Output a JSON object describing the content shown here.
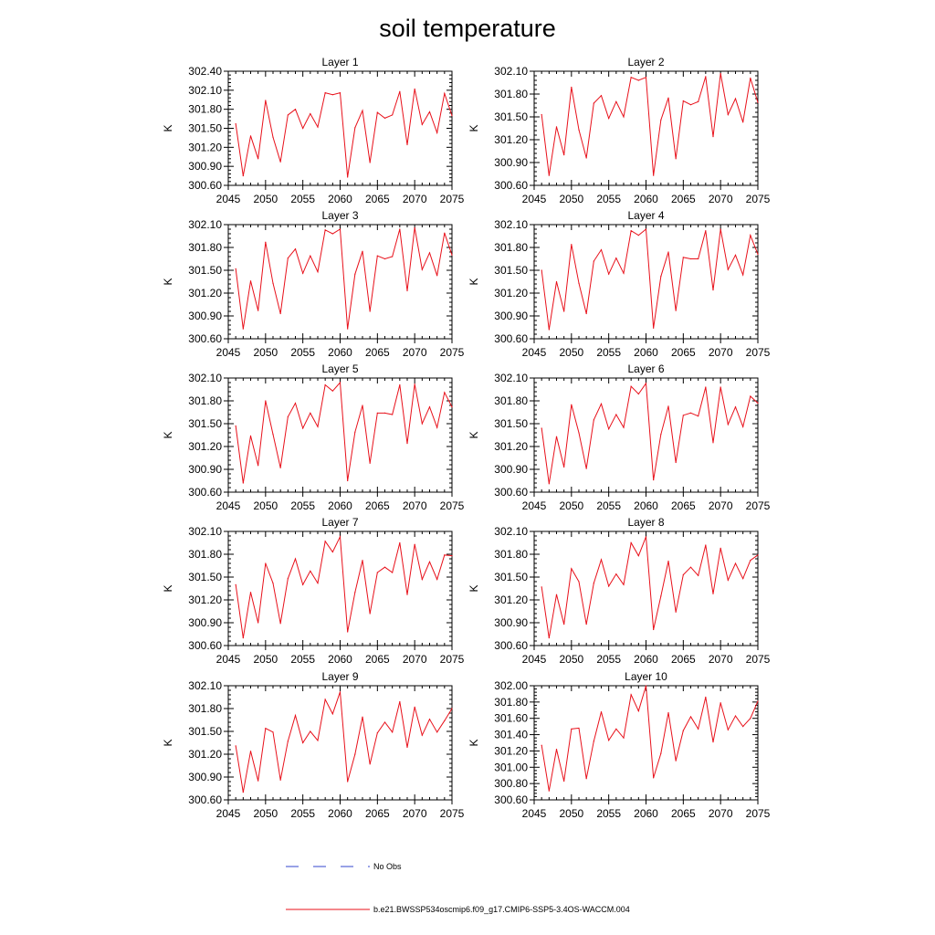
{
  "title": "soil temperature",
  "colors": {
    "model": "#e8101a",
    "obs": "#3344cc",
    "axis": "#000000"
  },
  "legend": [
    {
      "label": "No Obs",
      "color": "#3344cc",
      "style": "dashed"
    },
    {
      "label": "b.e21.BWSSP534oscmip6.f09_g17.CMIP6-SSP5-3.4OS-WACCM.004",
      "color": "#e8101a",
      "style": "solid"
    }
  ],
  "chart_data": [
    {
      "type": "line",
      "title": "Layer 1",
      "ylabel": "K",
      "xlim": [
        2045,
        2075
      ],
      "xticks": [
        "2045",
        "2050",
        "2055",
        "2060",
        "2065",
        "2070",
        "2075"
      ],
      "ylim": [
        300.6,
        302.4
      ],
      "yticks": [
        "300.60",
        "300.90",
        "301.20",
        "301.50",
        "301.80",
        "302.10",
        "302.40"
      ],
      "series": [
        {
          "x": [
            2046,
            2047,
            2048,
            2049,
            2050,
            2051,
            2052,
            2053,
            2054,
            2055,
            2056,
            2057,
            2058,
            2059,
            2060,
            2061,
            2062,
            2063,
            2064,
            2065,
            2066,
            2067,
            2068,
            2069,
            2070,
            2071,
            2072,
            2073,
            2074,
            2075
          ],
          "values": [
            301.57,
            300.75,
            301.38,
            301.02,
            301.94,
            301.36,
            300.97,
            301.71,
            301.8,
            301.5,
            301.73,
            301.52,
            302.06,
            302.03,
            302.06,
            300.73,
            301.51,
            301.78,
            300.96,
            301.75,
            301.66,
            301.71,
            302.08,
            301.24,
            302.12,
            301.56,
            301.76,
            301.43,
            302.05,
            301.7
          ]
        }
      ]
    },
    {
      "type": "line",
      "title": "Layer 2",
      "ylabel": "K",
      "xlim": [
        2045,
        2075
      ],
      "xticks": [
        "2045",
        "2050",
        "2055",
        "2060",
        "2065",
        "2070",
        "2075"
      ],
      "ylim": [
        300.6,
        302.1
      ],
      "yticks": [
        "300.60",
        "300.90",
        "301.20",
        "301.50",
        "301.80",
        "302.10"
      ],
      "series": [
        {
          "x": [
            2046,
            2047,
            2048,
            2049,
            2050,
            2051,
            2052,
            2053,
            2054,
            2055,
            2056,
            2057,
            2058,
            2059,
            2060,
            2061,
            2062,
            2063,
            2064,
            2065,
            2066,
            2067,
            2068,
            2069,
            2070,
            2071,
            2072,
            2073,
            2074,
            2075
          ],
          "values": [
            301.53,
            300.73,
            301.37,
            301.0,
            301.89,
            301.33,
            300.96,
            301.68,
            301.78,
            301.48,
            301.7,
            301.5,
            302.02,
            301.98,
            302.02,
            300.73,
            301.46,
            301.75,
            300.95,
            301.71,
            301.66,
            301.7,
            302.03,
            301.24,
            302.07,
            301.53,
            301.74,
            301.43,
            302.01,
            301.69
          ]
        }
      ]
    },
    {
      "type": "line",
      "title": "Layer 3",
      "ylabel": "K",
      "xlim": [
        2045,
        2075
      ],
      "xticks": [
        "2045",
        "2050",
        "2055",
        "2060",
        "2065",
        "2070",
        "2075"
      ],
      "ylim": [
        300.6,
        302.1
      ],
      "yticks": [
        "300.60",
        "300.90",
        "301.20",
        "301.50",
        "301.80",
        "302.10"
      ],
      "series": [
        {
          "x": [
            2046,
            2047,
            2048,
            2049,
            2050,
            2051,
            2052,
            2053,
            2054,
            2055,
            2056,
            2057,
            2058,
            2059,
            2060,
            2061,
            2062,
            2063,
            2064,
            2065,
            2066,
            2067,
            2068,
            2069,
            2070,
            2071,
            2072,
            2073,
            2074,
            2075
          ],
          "values": [
            301.52,
            300.73,
            301.36,
            300.97,
            301.87,
            301.33,
            300.93,
            301.66,
            301.78,
            301.46,
            301.69,
            301.48,
            302.03,
            301.98,
            302.04,
            300.73,
            301.45,
            301.75,
            300.96,
            301.69,
            301.65,
            301.68,
            302.04,
            301.23,
            302.06,
            301.51,
            301.73,
            301.43,
            301.99,
            301.7
          ]
        }
      ]
    },
    {
      "type": "line",
      "title": "Layer 4",
      "ylabel": "K",
      "xlim": [
        2045,
        2075
      ],
      "xticks": [
        "2045",
        "2050",
        "2055",
        "2060",
        "2065",
        "2070",
        "2075"
      ],
      "ylim": [
        300.6,
        302.1
      ],
      "yticks": [
        "300.60",
        "300.90",
        "301.20",
        "301.50",
        "301.80",
        "302.10"
      ],
      "series": [
        {
          "x": [
            2046,
            2047,
            2048,
            2049,
            2050,
            2051,
            2052,
            2053,
            2054,
            2055,
            2056,
            2057,
            2058,
            2059,
            2060,
            2061,
            2062,
            2063,
            2064,
            2065,
            2066,
            2067,
            2068,
            2069,
            2070,
            2071,
            2072,
            2073,
            2074,
            2075
          ],
          "values": [
            301.5,
            300.72,
            301.35,
            300.96,
            301.84,
            301.33,
            300.93,
            301.62,
            301.77,
            301.45,
            301.66,
            301.46,
            302.02,
            301.96,
            302.04,
            300.74,
            301.42,
            301.74,
            300.97,
            301.67,
            301.65,
            301.65,
            302.02,
            301.24,
            302.04,
            301.51,
            301.7,
            301.44,
            301.96,
            301.71
          ]
        }
      ]
    },
    {
      "type": "line",
      "title": "Layer 5",
      "ylabel": "K",
      "xlim": [
        2045,
        2075
      ],
      "xticks": [
        "2045",
        "2050",
        "2055",
        "2060",
        "2065",
        "2070",
        "2075"
      ],
      "ylim": [
        300.6,
        302.1
      ],
      "yticks": [
        "300.60",
        "300.90",
        "301.20",
        "301.50",
        "301.80",
        "302.10"
      ],
      "series": [
        {
          "x": [
            2046,
            2047,
            2048,
            2049,
            2050,
            2051,
            2052,
            2053,
            2054,
            2055,
            2056,
            2057,
            2058,
            2059,
            2060,
            2061,
            2062,
            2063,
            2064,
            2065,
            2066,
            2067,
            2068,
            2069,
            2070,
            2071,
            2072,
            2073,
            2074,
            2075
          ],
          "values": [
            301.47,
            300.72,
            301.34,
            300.95,
            301.8,
            301.36,
            300.92,
            301.59,
            301.77,
            301.44,
            301.64,
            301.46,
            302.01,
            301.93,
            302.04,
            300.75,
            301.39,
            301.74,
            300.98,
            301.64,
            301.64,
            301.62,
            302.01,
            301.24,
            302.02,
            301.5,
            301.72,
            301.45,
            301.91,
            301.72
          ]
        }
      ]
    },
    {
      "type": "line",
      "title": "Layer 6",
      "ylabel": "K",
      "xlim": [
        2045,
        2075
      ],
      "xticks": [
        "2045",
        "2050",
        "2055",
        "2060",
        "2065",
        "2070",
        "2075"
      ],
      "ylim": [
        300.6,
        302.1
      ],
      "yticks": [
        "300.60",
        "300.90",
        "301.20",
        "301.50",
        "301.80",
        "302.10"
      ],
      "series": [
        {
          "x": [
            2046,
            2047,
            2048,
            2049,
            2050,
            2051,
            2052,
            2053,
            2054,
            2055,
            2056,
            2057,
            2058,
            2059,
            2060,
            2061,
            2062,
            2063,
            2064,
            2065,
            2066,
            2067,
            2068,
            2069,
            2070,
            2071,
            2072,
            2073,
            2074,
            2075
          ],
          "values": [
            301.44,
            300.71,
            301.33,
            300.93,
            301.75,
            301.38,
            300.91,
            301.55,
            301.76,
            301.43,
            301.62,
            301.45,
            301.99,
            301.89,
            302.03,
            300.76,
            301.36,
            301.73,
            300.99,
            301.61,
            301.64,
            301.6,
            301.98,
            301.25,
            301.98,
            301.49,
            301.72,
            301.46,
            301.86,
            301.77
          ]
        }
      ]
    },
    {
      "type": "line",
      "title": "Layer 7",
      "ylabel": "K",
      "xlim": [
        2045,
        2075
      ],
      "xticks": [
        "2045",
        "2050",
        "2055",
        "2060",
        "2065",
        "2070",
        "2075"
      ],
      "ylim": [
        300.6,
        302.1
      ],
      "yticks": [
        "300.60",
        "300.90",
        "301.20",
        "301.50",
        "301.80",
        "302.10"
      ],
      "series": [
        {
          "x": [
            2046,
            2047,
            2048,
            2049,
            2050,
            2051,
            2052,
            2053,
            2054,
            2055,
            2056,
            2057,
            2058,
            2059,
            2060,
            2061,
            2062,
            2063,
            2064,
            2065,
            2066,
            2067,
            2068,
            2069,
            2070,
            2071,
            2072,
            2073,
            2074,
            2075
          ],
          "values": [
            301.4,
            300.7,
            301.3,
            300.9,
            301.68,
            301.42,
            300.89,
            301.48,
            301.74,
            301.4,
            301.58,
            301.42,
            301.97,
            301.83,
            302.03,
            300.78,
            301.3,
            301.72,
            301.02,
            301.56,
            301.63,
            301.56,
            301.95,
            301.27,
            301.93,
            301.47,
            301.7,
            301.47,
            301.79,
            301.78
          ]
        }
      ]
    },
    {
      "type": "line",
      "title": "Layer 8",
      "ylabel": "K",
      "xlim": [
        2045,
        2075
      ],
      "xticks": [
        "2045",
        "2050",
        "2055",
        "2060",
        "2065",
        "2070",
        "2075"
      ],
      "ylim": [
        300.6,
        302.1
      ],
      "yticks": [
        "300.60",
        "300.90",
        "301.20",
        "301.50",
        "301.80",
        "302.10"
      ],
      "series": [
        {
          "x": [
            2046,
            2047,
            2048,
            2049,
            2050,
            2051,
            2052,
            2053,
            2054,
            2055,
            2056,
            2057,
            2058,
            2059,
            2060,
            2061,
            2062,
            2063,
            2064,
            2065,
            2066,
            2067,
            2068,
            2069,
            2070,
            2071,
            2072,
            2073,
            2074,
            2075
          ],
          "values": [
            301.37,
            300.7,
            301.27,
            300.88,
            301.61,
            301.44,
            300.88,
            301.42,
            301.73,
            301.38,
            301.54,
            301.4,
            301.95,
            301.78,
            302.03,
            300.81,
            301.25,
            301.71,
            301.04,
            301.53,
            301.63,
            301.52,
            301.92,
            301.28,
            301.88,
            301.46,
            301.68,
            301.48,
            301.72,
            301.79
          ]
        }
      ]
    },
    {
      "type": "line",
      "title": "Layer 9",
      "ylabel": "K",
      "xlim": [
        2045,
        2075
      ],
      "xticks": [
        "2045",
        "2050",
        "2055",
        "2060",
        "2065",
        "2070",
        "2075"
      ],
      "ylim": [
        300.6,
        302.1
      ],
      "yticks": [
        "300.60",
        "300.90",
        "301.20",
        "301.50",
        "301.80",
        "302.10"
      ],
      "series": [
        {
          "x": [
            2046,
            2047,
            2048,
            2049,
            2050,
            2051,
            2052,
            2053,
            2054,
            2055,
            2056,
            2057,
            2058,
            2059,
            2060,
            2061,
            2062,
            2063,
            2064,
            2065,
            2066,
            2067,
            2068,
            2069,
            2070,
            2071,
            2072,
            2073,
            2074,
            2075
          ],
          "values": [
            301.31,
            300.7,
            301.24,
            300.85,
            301.54,
            301.49,
            300.86,
            301.37,
            301.71,
            301.35,
            301.5,
            301.38,
            301.92,
            301.73,
            302.02,
            300.84,
            301.2,
            301.69,
            301.07,
            301.48,
            301.62,
            301.49,
            301.89,
            301.29,
            301.82,
            301.45,
            301.66,
            301.49,
            301.64,
            301.8
          ]
        }
      ]
    },
    {
      "type": "line",
      "title": "Layer 10",
      "ylabel": "K",
      "xlim": [
        2045,
        2075
      ],
      "xticks": [
        "2045",
        "2050",
        "2055",
        "2060",
        "2065",
        "2070",
        "2075"
      ],
      "ylim": [
        300.6,
        302.0
      ],
      "yticks": [
        "300.60",
        "300.80",
        "301.00",
        "301.20",
        "301.40",
        "301.60",
        "301.80",
        "302.00"
      ],
      "series": [
        {
          "x": [
            2046,
            2047,
            2048,
            2049,
            2050,
            2051,
            2052,
            2053,
            2054,
            2055,
            2056,
            2057,
            2058,
            2059,
            2060,
            2061,
            2062,
            2063,
            2064,
            2065,
            2066,
            2067,
            2068,
            2069,
            2070,
            2071,
            2072,
            2073,
            2074,
            2075
          ],
          "values": [
            301.27,
            300.71,
            301.22,
            300.83,
            301.47,
            301.48,
            300.86,
            301.32,
            301.68,
            301.33,
            301.47,
            301.36,
            301.89,
            301.69,
            302.0,
            300.87,
            301.17,
            301.67,
            301.08,
            301.45,
            301.62,
            301.47,
            301.86,
            301.31,
            301.79,
            301.46,
            301.63,
            301.5,
            301.6,
            301.81
          ]
        }
      ]
    }
  ]
}
